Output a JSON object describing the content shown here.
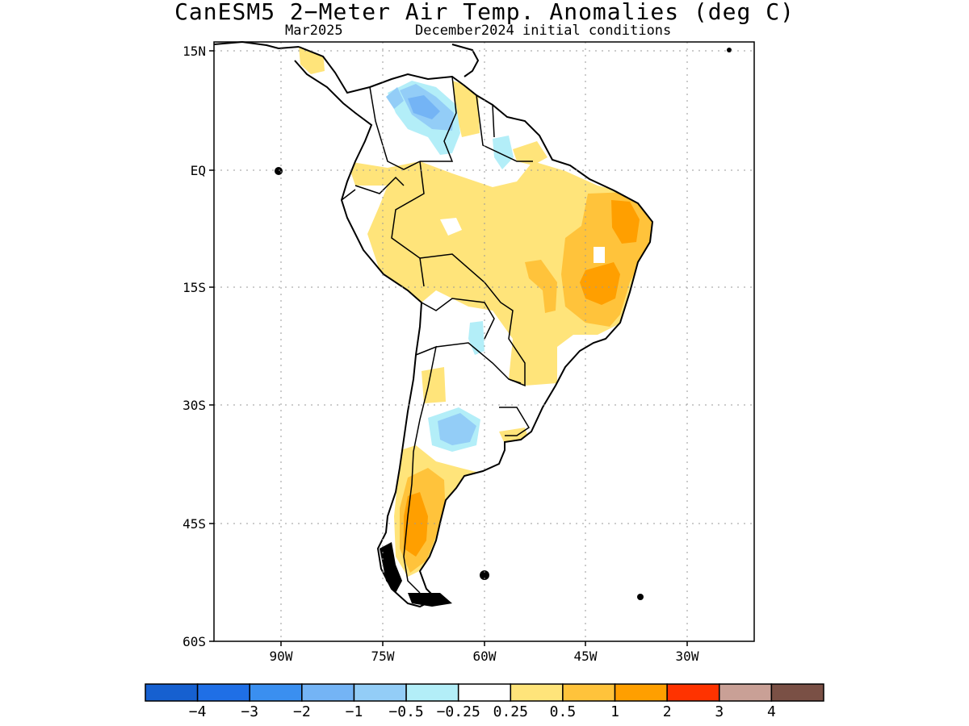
{
  "title": "CanESM5 2−Meter Air Temp. Anomalies (deg C)",
  "subtitle_left": "Mar2025",
  "subtitle_right": "December2024 initial conditions",
  "lat_ticks": [
    "15N",
    "EQ",
    "15S",
    "30S",
    "45S",
    "60S"
  ],
  "lon_ticks": [
    "90W",
    "75W",
    "60W",
    "45W",
    "30W"
  ],
  "colorbar": {
    "colors": [
      "#1660d0",
      "#1f6fe6",
      "#3a8ff0",
      "#74b4f5",
      "#93cdf7",
      "#b3eef8",
      "#ffffff",
      "#ffe47a",
      "#ffc33b",
      "#ff9f00",
      "#ff3300",
      "#c9a096",
      "#7a5045"
    ],
    "labels": [
      "−4",
      "−3",
      "−2",
      "−1",
      "−0.5",
      "−0.25",
      "0.25",
      "0.5",
      "1",
      "2",
      "3",
      "4"
    ]
  }
}
